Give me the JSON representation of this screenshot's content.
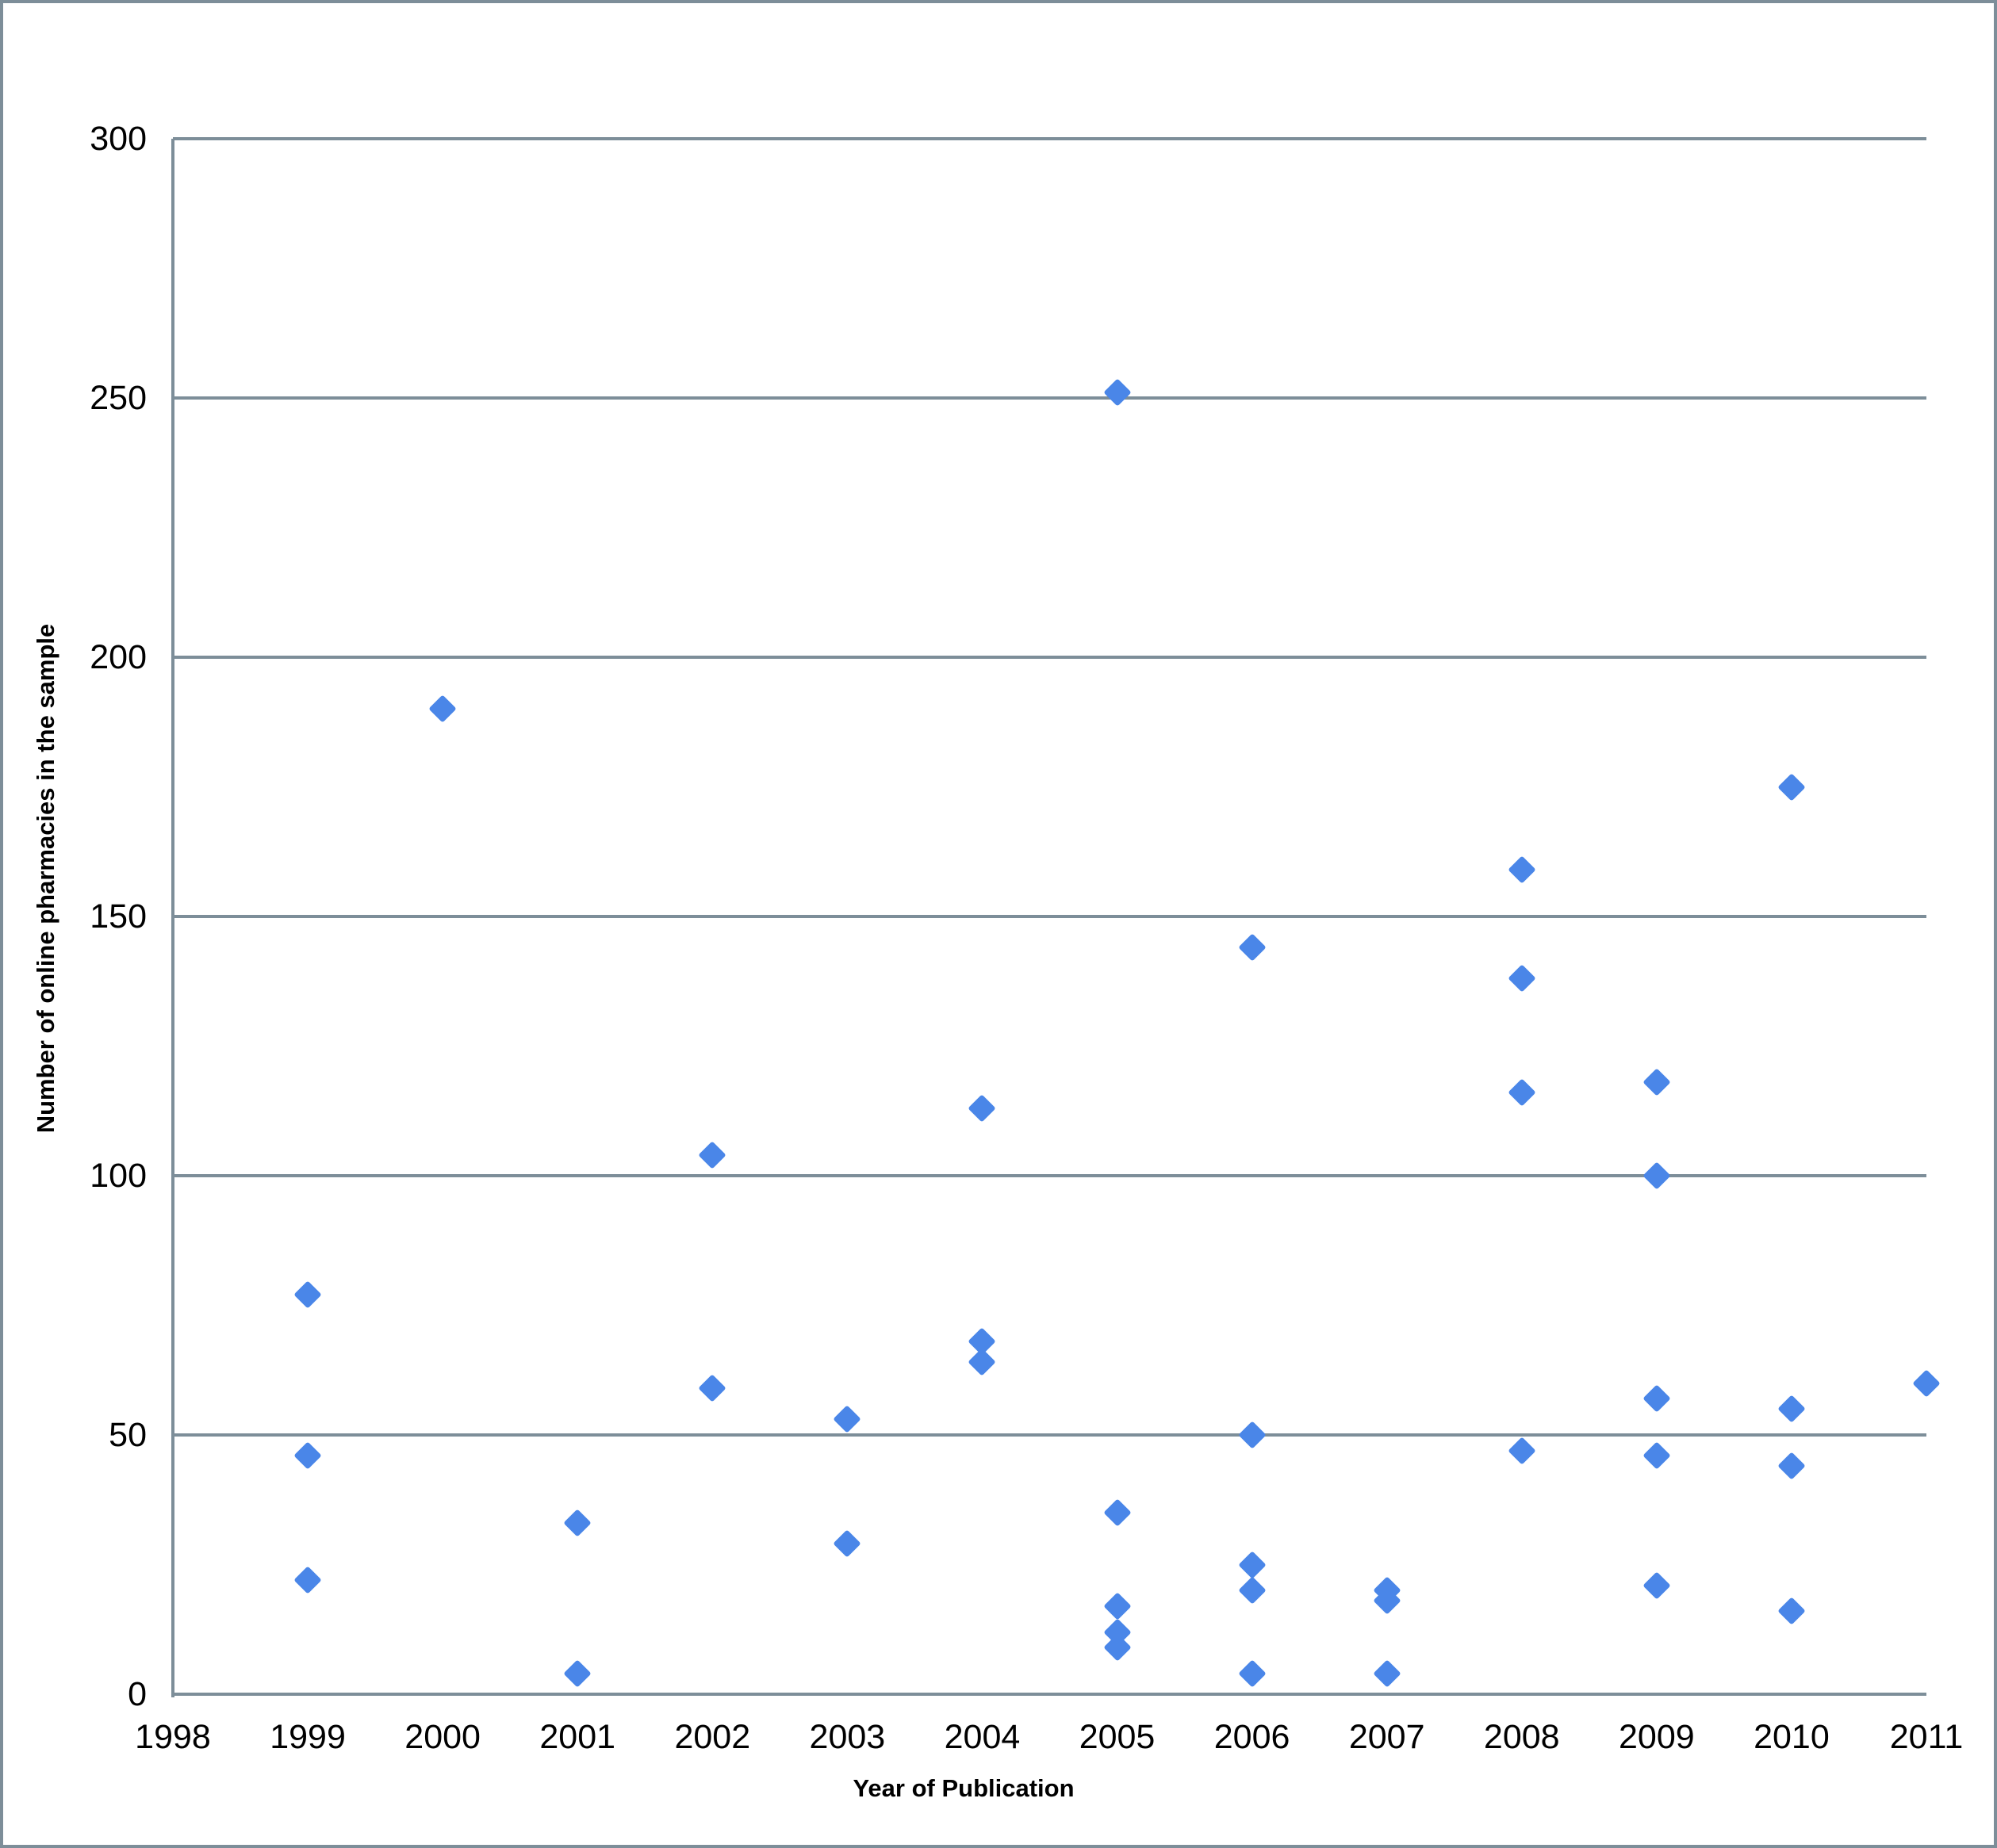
{
  "chart_data": {
    "type": "scatter",
    "title": "",
    "xlabel": "Year of Publication",
    "ylabel": "Number of online pharmacies in the sample",
    "xlim": [
      1998,
      2011
    ],
    "ylim": [
      0,
      300
    ],
    "x_ticks": [
      1998,
      1999,
      2000,
      2001,
      2002,
      2003,
      2004,
      2005,
      2006,
      2007,
      2008,
      2009,
      2010,
      2011
    ],
    "y_ticks": [
      0,
      50,
      100,
      150,
      200,
      250,
      300
    ],
    "grid": "horizontal",
    "legend": "none",
    "marker": "diamond",
    "marker_color": "#4a86e8",
    "gridline_color": "#7d8e99",
    "axis_line_color": "#7d8e99",
    "points": [
      {
        "x": 1999,
        "y": 77
      },
      {
        "x": 1999,
        "y": 46
      },
      {
        "x": 1999,
        "y": 22
      },
      {
        "x": 2000,
        "y": 190
      },
      {
        "x": 2001,
        "y": 33
      },
      {
        "x": 2001,
        "y": 4
      },
      {
        "x": 2002,
        "y": 104
      },
      {
        "x": 2002,
        "y": 59
      },
      {
        "x": 2003,
        "y": 53
      },
      {
        "x": 2003,
        "y": 29
      },
      {
        "x": 2004,
        "y": 113
      },
      {
        "x": 2004,
        "y": 68
      },
      {
        "x": 2004,
        "y": 64
      },
      {
        "x": 2005,
        "y": 251
      },
      {
        "x": 2005,
        "y": 35
      },
      {
        "x": 2005,
        "y": 17
      },
      {
        "x": 2005,
        "y": 12
      },
      {
        "x": 2005,
        "y": 9
      },
      {
        "x": 2006,
        "y": 144
      },
      {
        "x": 2006,
        "y": 50
      },
      {
        "x": 2006,
        "y": 25
      },
      {
        "x": 2006,
        "y": 20
      },
      {
        "x": 2006,
        "y": 4
      },
      {
        "x": 2007,
        "y": 20
      },
      {
        "x": 2007,
        "y": 18
      },
      {
        "x": 2007,
        "y": 4
      },
      {
        "x": 2008,
        "y": 159
      },
      {
        "x": 2008,
        "y": 138
      },
      {
        "x": 2008,
        "y": 116
      },
      {
        "x": 2008,
        "y": 47
      },
      {
        "x": 2009,
        "y": 118
      },
      {
        "x": 2009,
        "y": 100
      },
      {
        "x": 2009,
        "y": 57
      },
      {
        "x": 2009,
        "y": 46
      },
      {
        "x": 2009,
        "y": 21
      },
      {
        "x": 2010,
        "y": 175
      },
      {
        "x": 2010,
        "y": 55
      },
      {
        "x": 2010,
        "y": 44
      },
      {
        "x": 2010,
        "y": 16
      },
      {
        "x": 2011,
        "y": 60
      }
    ]
  }
}
